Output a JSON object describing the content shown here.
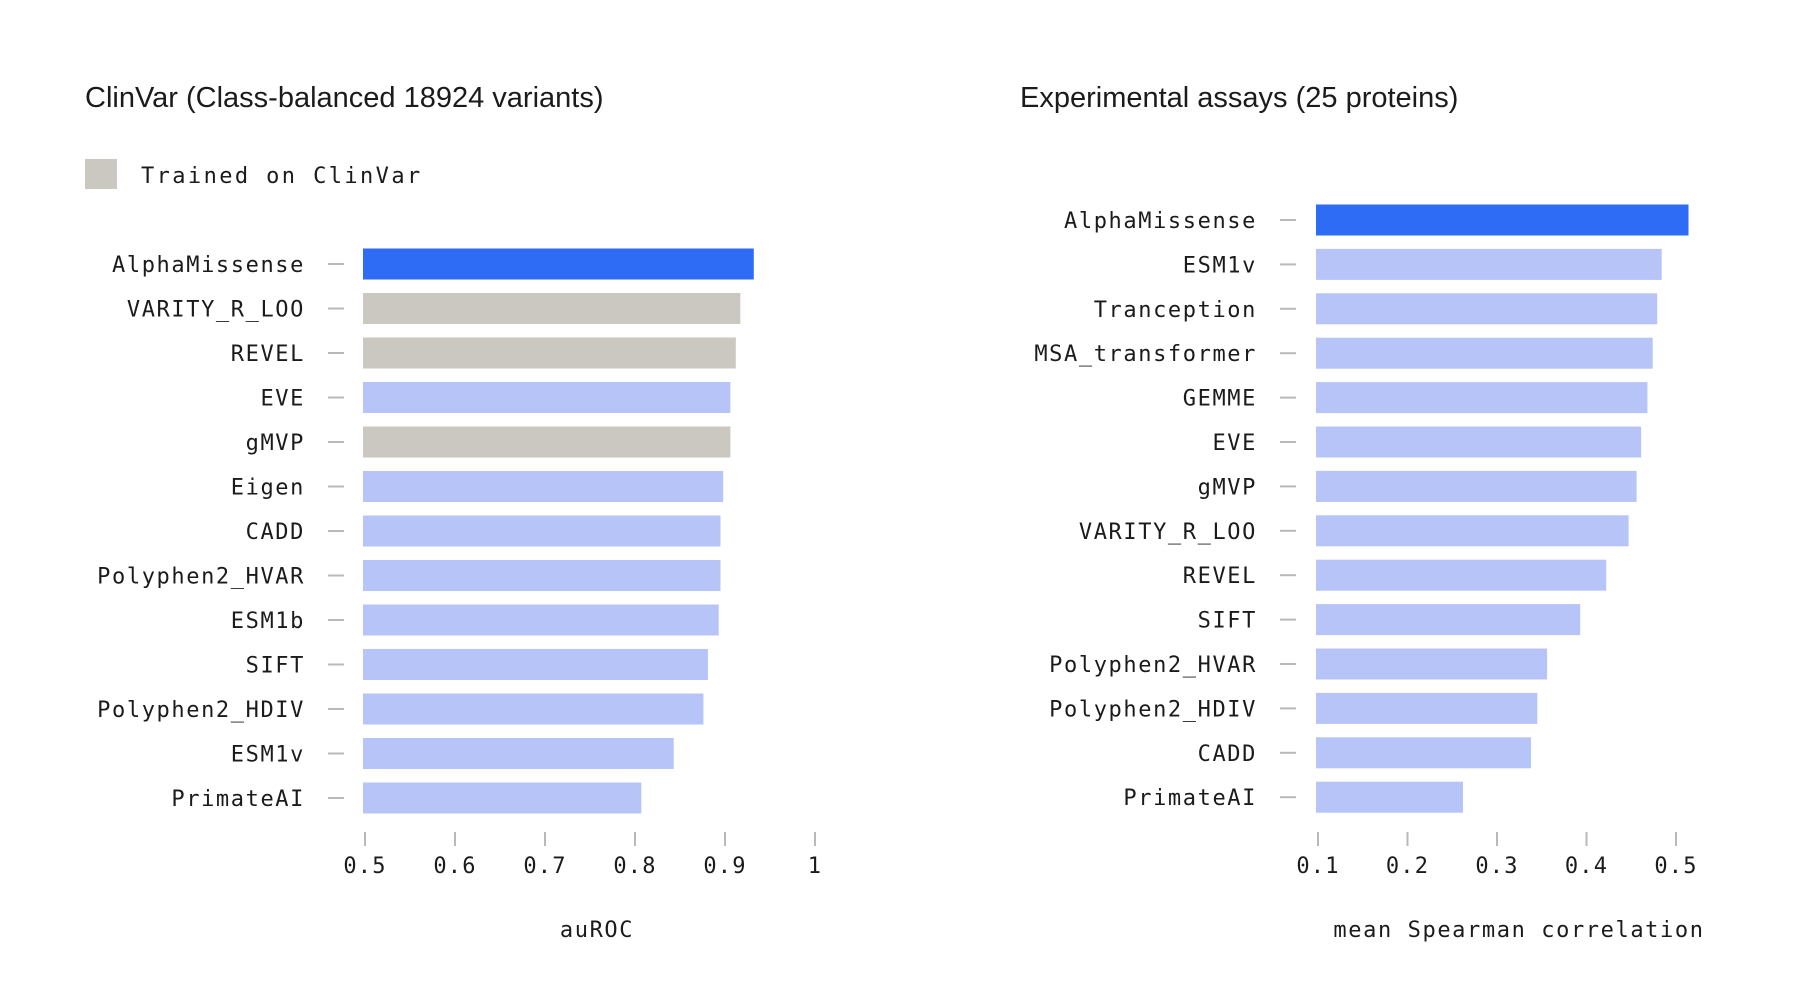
{
  "colors": {
    "highlight": "#2f6cf5",
    "default": "#b6c4f8",
    "trained": "#cbc7c1",
    "axis": "#b9b9b9",
    "text": "#1b1b1b"
  },
  "legend": {
    "label": "Trained on ClinVar",
    "color": "#cbc7c1"
  },
  "chart_data": [
    {
      "type": "bar",
      "orientation": "horizontal",
      "title": "ClinVar (Class-balanced 18924 variants)",
      "xlabel": "auROC",
      "ylabel": "",
      "xlim": [
        0.5,
        1
      ],
      "xticks": [
        "0.5",
        "0.6",
        "0.7",
        "0.8",
        "0.9",
        "1"
      ],
      "xtick_values": [
        0.5,
        0.6,
        0.7,
        0.8,
        0.9,
        1.0
      ],
      "categories": [
        "AlphaMissense",
        "VARITY_R_LOO",
        "REVEL",
        "EVE",
        "gMVP",
        "Eigen",
        "CADD",
        "Polyphen2_HVAR",
        "ESM1b",
        "SIFT",
        "Polyphen2_HDIV",
        "ESM1v",
        "PrimateAI"
      ],
      "values": [
        0.932,
        0.917,
        0.912,
        0.906,
        0.906,
        0.898,
        0.895,
        0.895,
        0.893,
        0.881,
        0.876,
        0.843,
        0.807
      ],
      "groups": [
        "highlight",
        "trained",
        "trained",
        "default",
        "trained",
        "default",
        "default",
        "default",
        "default",
        "default",
        "default",
        "default",
        "default"
      ]
    },
    {
      "type": "bar",
      "orientation": "horizontal",
      "title": "Experimental assays (25 proteins)",
      "xlabel": "mean Spearman correlation",
      "ylabel": "",
      "xlim": [
        0.1,
        0.5
      ],
      "xticks": [
        "0.1",
        "0.2",
        "0.3",
        "0.4",
        "0.5"
      ],
      "xtick_values": [
        0.1,
        0.2,
        0.3,
        0.4,
        0.5
      ],
      "categories": [
        "AlphaMissense",
        "ESM1v",
        "Tranception",
        "MSA_transformer",
        "GEMME",
        "EVE",
        "gMVP",
        "VARITY_R_LOO",
        "REVEL",
        "SIFT",
        "Polyphen2_HVAR",
        "Polyphen2_HDIV",
        "CADD",
        "PrimateAI"
      ],
      "values": [
        0.514,
        0.484,
        0.479,
        0.474,
        0.468,
        0.461,
        0.456,
        0.447,
        0.422,
        0.393,
        0.356,
        0.345,
        0.338,
        0.262
      ],
      "groups": [
        "highlight",
        "default",
        "default",
        "default",
        "default",
        "default",
        "default",
        "default",
        "default",
        "default",
        "default",
        "default",
        "default",
        "default"
      ]
    }
  ]
}
